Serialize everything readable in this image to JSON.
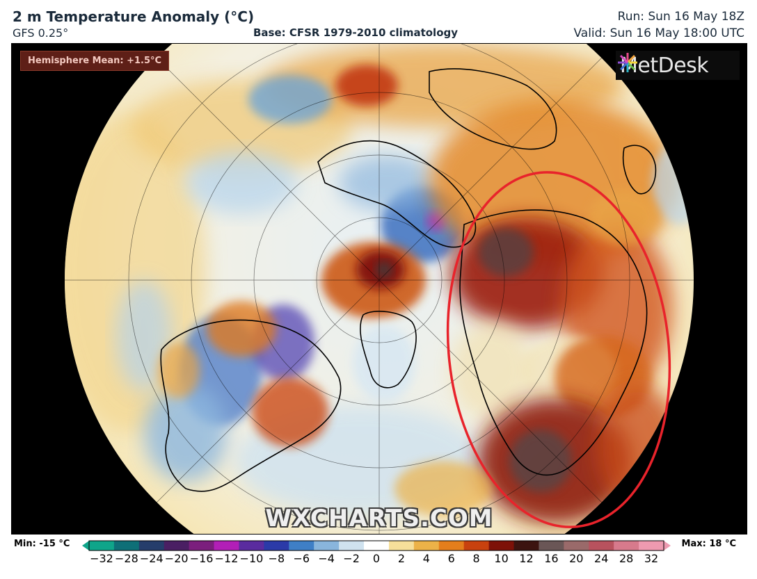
{
  "header": {
    "title": "2 m Temperature Anomaly (°C)",
    "model": "GFS 0.25°",
    "base": "Base: CFSR 1979-2010 climatology",
    "run": "Run: Sun 16 May 18Z",
    "valid": "Valid: Sun 16 May 18:00 UTC"
  },
  "map": {
    "hemisphere_mean": "Hemisphere Mean: +1.5°C",
    "logo_text": "MetDesk",
    "watermark": "WXCHARTS.COM",
    "highlight_color": "#e8232b",
    "projection": "north-polar-stereographic"
  },
  "legend": {
    "min_label": "Min: -15 °C",
    "max_label": "Max: 18 °C",
    "ticks": [
      "−32",
      "−28",
      "−24",
      "−20",
      "−16",
      "−12",
      "−10",
      "−8",
      "−6",
      "−4",
      "−2",
      "0",
      "2",
      "4",
      "6",
      "8",
      "10",
      "12",
      "16",
      "20",
      "24",
      "28",
      "32"
    ],
    "colors": [
      "#0fa58a",
      "#0e6f77",
      "#253d6b",
      "#4a1f63",
      "#7b1f7d",
      "#b21fb7",
      "#5a2c9f",
      "#2b3aa8",
      "#3f7fc6",
      "#89b5dc",
      "#cfe2ef",
      "#ffffff",
      "#f6df9a",
      "#ecb248",
      "#e47e1c",
      "#c8410e",
      "#7d1108",
      "#3c1410",
      "#6a5656",
      "#9a6a6a",
      "#b8525e",
      "#d77a8c",
      "#ee9ab0"
    ]
  }
}
